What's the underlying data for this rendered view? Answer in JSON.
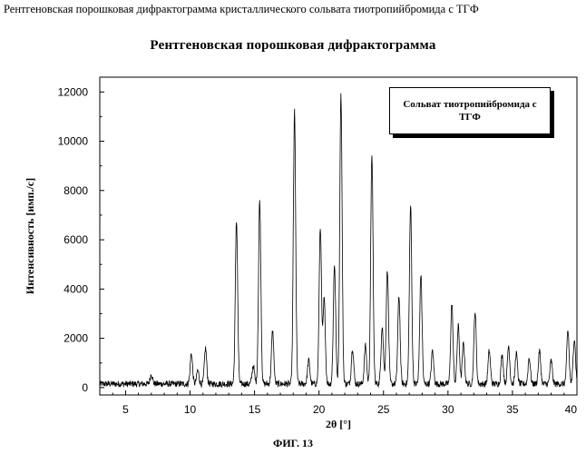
{
  "header": "Рентгеновская порошковая дифрактограмма кристаллического сольвата тиотропийбромида с ТГФ",
  "figure_caption": "ФИГ. 13",
  "chart_data": {
    "type": "line",
    "title": "Рентгеновская порошковая дифрактограмма",
    "xlabel": "2θ [°]",
    "ylabel": "Интенсивность [имп./с]",
    "xlim": [
      3,
      40
    ],
    "ylim": [
      -300,
      12600
    ],
    "x_ticks": [
      5,
      10,
      15,
      20,
      25,
      30,
      35,
      40
    ],
    "y_ticks": [
      0,
      2000,
      4000,
      6000,
      8000,
      10000,
      12000
    ],
    "grid": false,
    "legend": "top-right",
    "legend_text": "Сольват тиотропийбромида с ТГФ",
    "baseline": 150,
    "peaks": [
      {
        "x": 7.0,
        "y": 550
      },
      {
        "x": 10.1,
        "y": 1400
      },
      {
        "x": 10.6,
        "y": 700
      },
      {
        "x": 11.2,
        "y": 1600
      },
      {
        "x": 13.6,
        "y": 6800
      },
      {
        "x": 14.9,
        "y": 900
      },
      {
        "x": 15.4,
        "y": 7600
      },
      {
        "x": 16.4,
        "y": 2300
      },
      {
        "x": 18.1,
        "y": 11200
      },
      {
        "x": 19.2,
        "y": 1100
      },
      {
        "x": 20.1,
        "y": 6500
      },
      {
        "x": 20.4,
        "y": 3600
      },
      {
        "x": 21.2,
        "y": 5000
      },
      {
        "x": 21.7,
        "y": 11900
      },
      {
        "x": 22.6,
        "y": 1600
      },
      {
        "x": 23.6,
        "y": 1700
      },
      {
        "x": 24.1,
        "y": 9500
      },
      {
        "x": 24.9,
        "y": 2500
      },
      {
        "x": 25.3,
        "y": 4800
      },
      {
        "x": 26.2,
        "y": 3700
      },
      {
        "x": 27.1,
        "y": 7400
      },
      {
        "x": 27.9,
        "y": 4600
      },
      {
        "x": 28.8,
        "y": 1500
      },
      {
        "x": 30.3,
        "y": 3400
      },
      {
        "x": 30.8,
        "y": 2500
      },
      {
        "x": 31.2,
        "y": 1800
      },
      {
        "x": 32.1,
        "y": 3100
      },
      {
        "x": 33.2,
        "y": 1500
      },
      {
        "x": 34.2,
        "y": 1300
      },
      {
        "x": 34.7,
        "y": 1700
      },
      {
        "x": 35.3,
        "y": 1400
      },
      {
        "x": 36.3,
        "y": 1200
      },
      {
        "x": 37.1,
        "y": 1500
      },
      {
        "x": 38.0,
        "y": 1100
      },
      {
        "x": 39.3,
        "y": 2300
      },
      {
        "x": 39.8,
        "y": 2000
      }
    ]
  }
}
